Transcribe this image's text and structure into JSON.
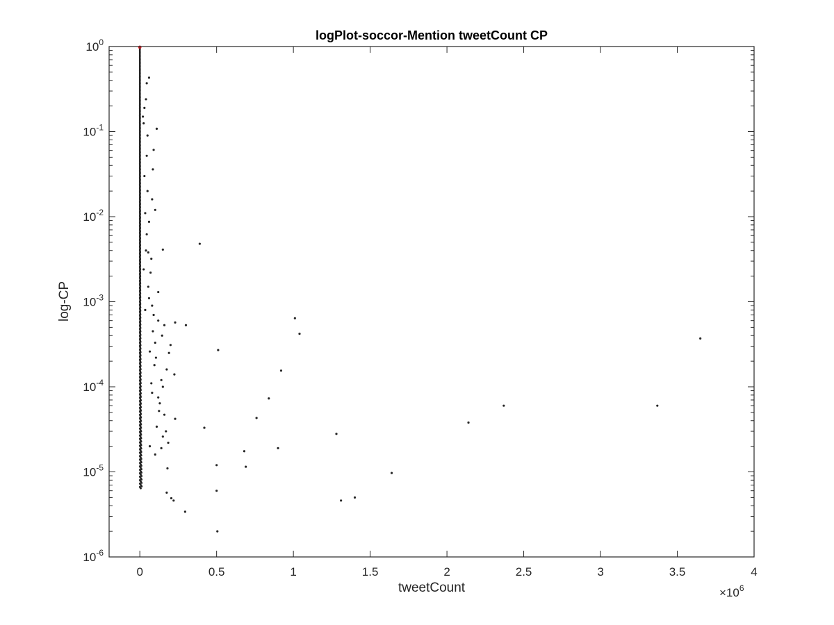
{
  "chart_data": {
    "type": "scatter",
    "title": "logPlot-soccor-Mention tweetCount CP",
    "xlabel": "tweetCount",
    "ylabel": "log-CP",
    "x_exponent_label": "×10",
    "x_exponent_power": "6",
    "x_scale": "linear",
    "y_scale": "log",
    "xlim": [
      -200000,
      4000000
    ],
    "ylim": [
      1e-06,
      1
    ],
    "grid": false,
    "box": true,
    "x_ticks": [
      0,
      500000,
      1000000,
      1500000,
      2000000,
      2500000,
      3000000,
      3500000,
      4000000
    ],
    "x_tick_labels": [
      "0",
      "0.5",
      "1",
      "1.5",
      "2",
      "2.5",
      "3",
      "3.5",
      "4"
    ],
    "y_ticks": [
      1e-06,
      1e-05,
      0.0001,
      0.001,
      0.01,
      0.1,
      1
    ],
    "y_tick_bases": [
      "10",
      "10",
      "10",
      "10",
      "10",
      "10",
      "10"
    ],
    "y_tick_exponents": [
      "-6",
      "-5",
      "-4",
      "-3",
      "-2",
      "-1",
      "0"
    ],
    "marker_color": "#262626",
    "highlight_color": "#e8232b",
    "highlight_point": {
      "x": 0,
      "y": 1
    },
    "points": [
      {
        "x": 3650000,
        "y": 0.00037
      },
      {
        "x": 3370000,
        "y": 6e-05
      },
      {
        "x": 2370000,
        "y": 6e-05
      },
      {
        "x": 2140000,
        "y": 3.8e-05
      },
      {
        "x": 1640000,
        "y": 9.7e-06
      },
      {
        "x": 1400000,
        "y": 5e-06
      },
      {
        "x": 1310000,
        "y": 4.6e-06
      },
      {
        "x": 1280000,
        "y": 2.8e-05
      },
      {
        "x": 1040000,
        "y": 0.00042
      },
      {
        "x": 1010000,
        "y": 0.00064
      },
      {
        "x": 920000,
        "y": 0.000155
      },
      {
        "x": 900000,
        "y": 1.9e-05
      },
      {
        "x": 840000,
        "y": 7.3e-05
      },
      {
        "x": 760000,
        "y": 4.3e-05
      },
      {
        "x": 680000,
        "y": 1.75e-05
      },
      {
        "x": 690000,
        "y": 1.15e-05
      },
      {
        "x": 510000,
        "y": 0.00027
      },
      {
        "x": 500000,
        "y": 1.2e-05
      },
      {
        "x": 500000,
        "y": 6e-06
      },
      {
        "x": 505000,
        "y": 2e-06
      },
      {
        "x": 420000,
        "y": 3.3e-05
      },
      {
        "x": 390000,
        "y": 0.0048
      },
      {
        "x": 300000,
        "y": 0.00053
      },
      {
        "x": 295000,
        "y": 3.4e-06
      },
      {
        "x": 230000,
        "y": 0.00057
      },
      {
        "x": 225000,
        "y": 0.00014
      },
      {
        "x": 230000,
        "y": 4.2e-05
      },
      {
        "x": 220000,
        "y": 4.6e-06
      },
      {
        "x": 205000,
        "y": 4.9e-06
      },
      {
        "x": 200000,
        "y": 0.00031
      },
      {
        "x": 190000,
        "y": 0.00025
      },
      {
        "x": 185000,
        "y": 2.2e-05
      },
      {
        "x": 180000,
        "y": 1.1e-05
      },
      {
        "x": 175000,
        "y": 5.7e-06
      },
      {
        "x": 160000,
        "y": 0.00053
      },
      {
        "x": 150000,
        "y": 0.0041
      },
      {
        "x": 150000,
        "y": 0.0001
      },
      {
        "x": 140000,
        "y": 1.9e-05
      },
      {
        "x": 120000,
        "y": 0.0013
      },
      {
        "x": 110000,
        "y": 0.108
      },
      {
        "x": 100000,
        "y": 0.012
      },
      {
        "x": 90000,
        "y": 0.061
      },
      {
        "x": 90000,
        "y": 0.0007
      },
      {
        "x": 85000,
        "y": 0.036
      },
      {
        "x": 80000,
        "y": 0.016
      },
      {
        "x": 60000,
        "y": 0.43
      },
      {
        "x": 45000,
        "y": 0.37
      },
      {
        "x": 40000,
        "y": 0.24
      },
      {
        "x": 50000,
        "y": 0.09
      },
      {
        "x": 45000,
        "y": 0.052
      },
      {
        "x": 30000,
        "y": 0.19
      },
      {
        "x": 25000,
        "y": 0.125
      },
      {
        "x": 60000,
        "y": 0.0087
      },
      {
        "x": 70000,
        "y": 0.0022
      },
      {
        "x": 100000,
        "y": 0.00033
      },
      {
        "x": 130000,
        "y": 6.4e-05
      },
      {
        "x": 160000,
        "y": 4.7e-05
      },
      {
        "x": 65000,
        "y": 2e-05
      },
      {
        "x": 110000,
        "y": 3.4e-05
      },
      {
        "x": 95000,
        "y": 0.00018
      },
      {
        "x": 140000,
        "y": 0.00012
      },
      {
        "x": 75000,
        "y": 0.0032
      },
      {
        "x": 55000,
        "y": 0.0015
      },
      {
        "x": 40000,
        "y": 0.004
      },
      {
        "x": 35000,
        "y": 0.0008
      },
      {
        "x": 120000,
        "y": 7.5e-05
      },
      {
        "x": 170000,
        "y": 3e-05
      },
      {
        "x": 85000,
        "y": 0.00045
      },
      {
        "x": 65000,
        "y": 0.00026
      },
      {
        "x": 100000,
        "y": 1.6e-05
      },
      {
        "x": 75000,
        "y": 0.00011
      },
      {
        "x": 20000,
        "y": 0.15
      },
      {
        "x": 30000,
        "y": 0.03
      },
      {
        "x": 50000,
        "y": 0.02
      },
      {
        "x": 35000,
        "y": 0.011
      },
      {
        "x": 45000,
        "y": 0.0062
      },
      {
        "x": 55000,
        "y": 0.0038
      },
      {
        "x": 25000,
        "y": 0.0024
      },
      {
        "x": 60000,
        "y": 0.0011
      },
      {
        "x": 80000,
        "y": 0.0009
      },
      {
        "x": 120000,
        "y": 0.0006
      },
      {
        "x": 145000,
        "y": 0.0004
      },
      {
        "x": 105000,
        "y": 0.00022
      },
      {
        "x": 175000,
        "y": 0.00016
      },
      {
        "x": 80000,
        "y": 8.5e-05
      },
      {
        "x": 125000,
        "y": 5.2e-05
      },
      {
        "x": 150000,
        "y": 2.6e-05
      }
    ]
  }
}
